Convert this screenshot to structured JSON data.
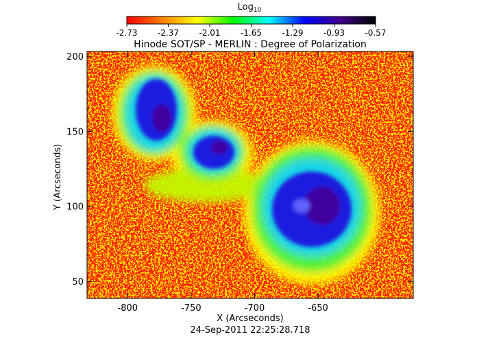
{
  "chart_data": {
    "type": "image",
    "title": "Hinode SOT/SP - MERLIN : Degree of Polarization",
    "x_label": "X (Arcseconds)",
    "y_label": "Y (Arcseconds)",
    "footer": "24-Sep-2011 22:25:28.718",
    "colorbar_label": "Log",
    "colorbar_label_sub": "10",
    "colorbar_lim": [
      -2.73,
      -0.57
    ],
    "colorbar_ticks": [
      -2.73,
      -2.37,
      -2.01,
      -1.65,
      -1.29,
      -0.93,
      -0.57
    ],
    "colormap": [
      "#ff0000",
      "#ff8000",
      "#ffff00",
      "#00ff00",
      "#00ffff",
      "#0000ff",
      "#40008c",
      "#000000"
    ],
    "xlim": [
      -832,
      -575
    ],
    "xticks": [
      -800,
      -750,
      -700,
      -650
    ],
    "ylim": [
      38.6,
      203.2
    ],
    "yticks": [
      50,
      100,
      150,
      200
    ]
  }
}
